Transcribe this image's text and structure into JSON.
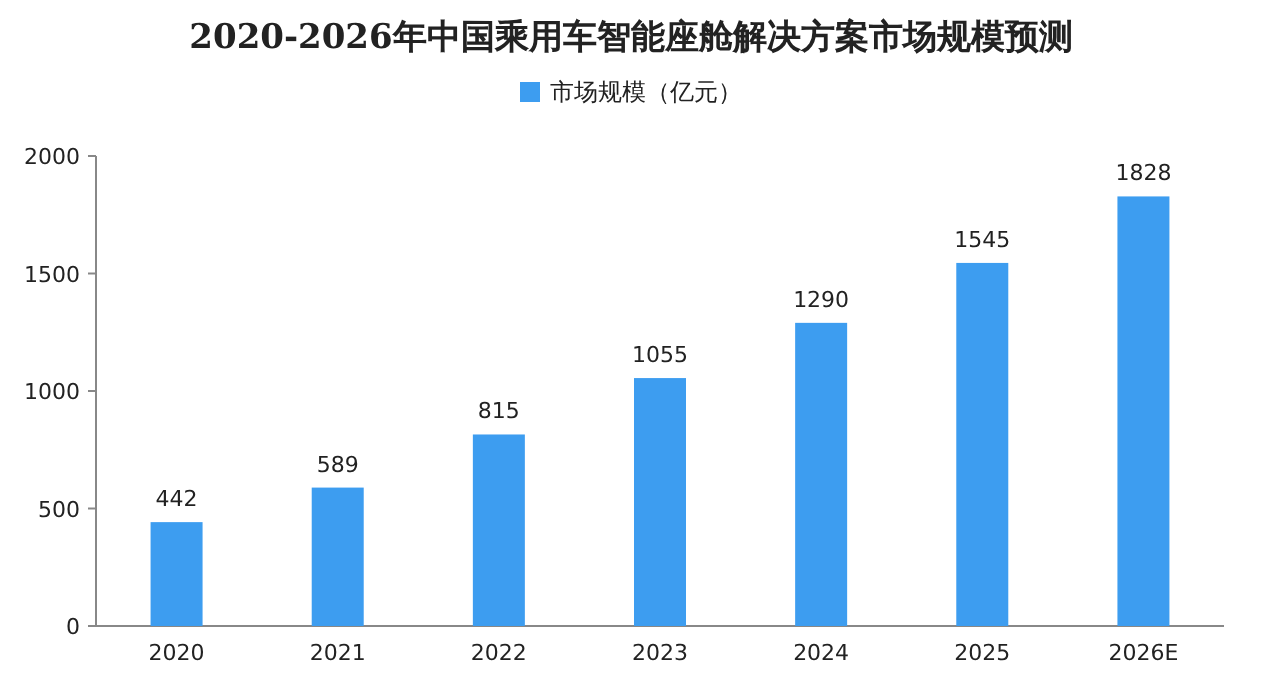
{
  "chart_data": {
    "type": "bar",
    "title": "2020-2026年中国乘用车智能座舱解决方案市场规模预测",
    "categories": [
      "2020",
      "2021",
      "2022",
      "2023",
      "2024",
      "2025",
      "2026E"
    ],
    "series": [
      {
        "name": "市场规模（亿元）",
        "color": "#3d9df0",
        "values": [
          442,
          589,
          815,
          1055,
          1290,
          1545,
          1828
        ]
      }
    ],
    "ylim": [
      0,
      2000
    ],
    "yticks": [
      0,
      500,
      1000,
      1500,
      2000
    ],
    "data_labels": true,
    "legend": "top",
    "grid": false
  }
}
